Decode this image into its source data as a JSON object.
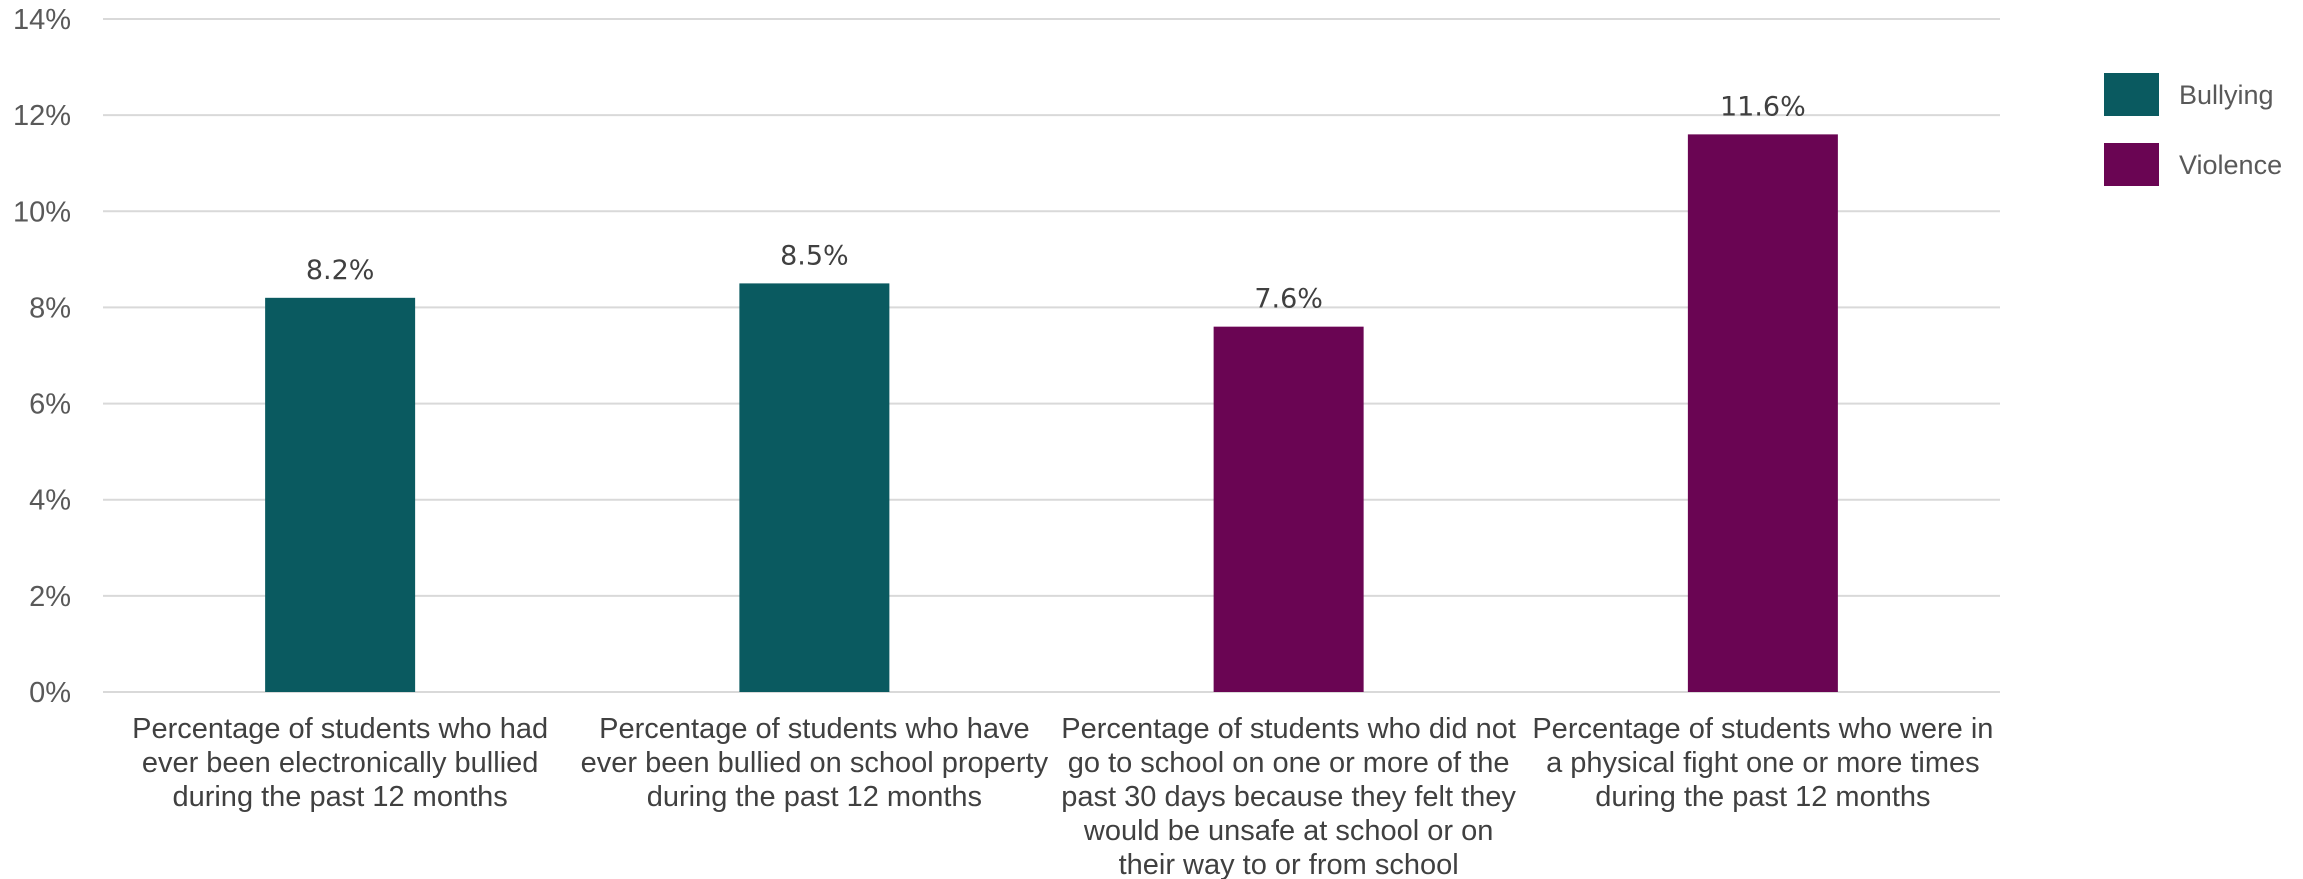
{
  "chart_data": {
    "type": "bar",
    "categories": [
      "Percentage of students who had ever been electronically bullied during the past 12 months",
      "Percentage of students who have ever been bullied on school property during the past 12 months",
      "Percentage of students who did not go to school on one or more of the past 30 days because they felt they would be unsafe at school or on their way to or from school",
      "Percentage of students who were in a physical fight one or more times during the past 12 months"
    ],
    "category_label_lines": [
      [
        "Percentage of students who had",
        "ever been electronically bullied",
        "during the past 12 months"
      ],
      [
        "Percentage of students who have",
        "ever been bullied on school property",
        "during the past 12 months"
      ],
      [
        "Percentage of students who did not",
        "go to school on one or more of the",
        "past 30 days because they felt they",
        "would be unsafe at school or on",
        "their way to or from school"
      ],
      [
        "Percentage of students who were in",
        "a physical fight one or more times",
        "during the past 12 months"
      ]
    ],
    "values": [
      8.2,
      8.5,
      7.6,
      11.6
    ],
    "data_labels": [
      "8.2%",
      "8.5%",
      "7.6%",
      "11.6%"
    ],
    "bar_groups": [
      "Bullying",
      "Bullying",
      "Violence",
      "Violence"
    ],
    "groups": [
      {
        "name": "Bullying",
        "color": "#0a5a60"
      },
      {
        "name": "Violence",
        "color": "#6a0553"
      }
    ],
    "y_ticks": [
      0,
      2,
      4,
      6,
      8,
      10,
      12,
      14
    ],
    "y_tick_labels": [
      "0%",
      "2%",
      "4%",
      "6%",
      "8%",
      "10%",
      "12%",
      "14%"
    ],
    "ylim": [
      0,
      14
    ],
    "grid": true,
    "legend_position": "right",
    "title": "",
    "xlabel": "",
    "ylabel": ""
  }
}
